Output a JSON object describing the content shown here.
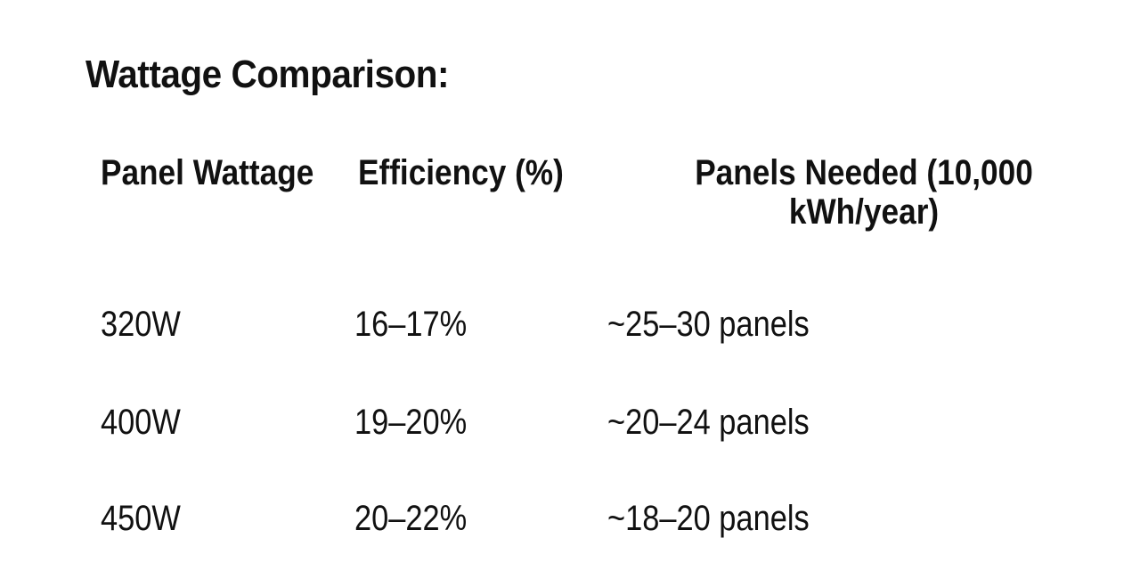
{
  "title": "Wattage Comparison:",
  "table": {
    "headers": [
      "Panel Wattage",
      "Efficiency (%)",
      "Panels Needed (10,000 kWh/year)"
    ],
    "rows": [
      [
        "320W",
        "16–17%",
        "~25–30 panels"
      ],
      [
        "400W",
        "19–20%",
        "~20–24 panels"
      ],
      [
        "450W",
        "20–22%",
        "~18–20 panels"
      ]
    ]
  }
}
